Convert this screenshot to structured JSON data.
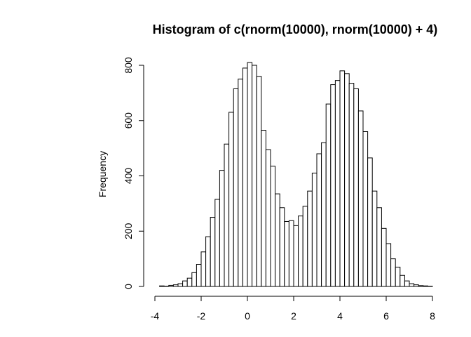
{
  "chart_data": {
    "type": "bar",
    "title": "Histogram of c(rnorm(10000), rnorm(10000) + 4)",
    "xlabel": "",
    "ylabel": "Frequency",
    "xlim": [
      -4,
      8
    ],
    "ylim": [
      0,
      800
    ],
    "x_ticks": [
      -4,
      -2,
      0,
      2,
      4,
      6,
      8
    ],
    "x_tick_labels": [
      "-4",
      "-2",
      "0",
      "2",
      "4",
      "6",
      "8"
    ],
    "y_ticks": [
      0,
      200,
      400,
      600,
      800
    ],
    "y_tick_labels": [
      "0",
      "200",
      "400",
      "600",
      "800"
    ],
    "bin_width": 0.2,
    "bin_starts": [
      -3.8,
      -3.6,
      -3.4,
      -3.2,
      -3.0,
      -2.8,
      -2.6,
      -2.4,
      -2.2,
      -2.0,
      -1.8,
      -1.6,
      -1.4,
      -1.2,
      -1.0,
      -0.8,
      -0.6,
      -0.4,
      -0.2,
      0.0,
      0.2,
      0.4,
      0.6,
      0.8,
      1.0,
      1.2,
      1.4,
      1.6,
      1.8,
      2.0,
      2.2,
      2.4,
      2.6,
      2.8,
      3.0,
      3.2,
      3.4,
      3.6,
      3.8,
      4.0,
      4.2,
      4.4,
      4.6,
      4.8,
      5.0,
      5.2,
      5.4,
      5.6,
      5.8,
      6.0,
      6.2,
      6.4,
      6.6,
      6.8,
      7.0,
      7.2,
      7.4,
      7.6,
      7.8
    ],
    "values": [
      2,
      1,
      4,
      6,
      10,
      20,
      30,
      50,
      80,
      125,
      180,
      250,
      315,
      420,
      515,
      630,
      715,
      750,
      790,
      810,
      800,
      760,
      565,
      495,
      435,
      335,
      285,
      235,
      238,
      220,
      255,
      290,
      345,
      410,
      480,
      520,
      660,
      730,
      745,
      780,
      770,
      735,
      715,
      635,
      560,
      465,
      345,
      285,
      210,
      155,
      100,
      70,
      40,
      20,
      10,
      6,
      3,
      2,
      1
    ]
  }
}
